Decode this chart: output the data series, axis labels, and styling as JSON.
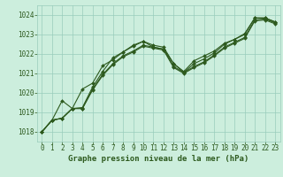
{
  "xlabel": "Graphe pression niveau de la mer (hPa)",
  "xlim": [
    -0.5,
    23.5
  ],
  "ylim": [
    1017.5,
    1024.5
  ],
  "yticks": [
    1018,
    1019,
    1020,
    1021,
    1022,
    1023,
    1024
  ],
  "xticks": [
    0,
    1,
    2,
    3,
    4,
    5,
    6,
    7,
    8,
    9,
    10,
    11,
    12,
    13,
    14,
    15,
    16,
    17,
    18,
    19,
    20,
    21,
    22,
    23
  ],
  "bg_color": "#cceedd",
  "grid_color": "#99ccbb",
  "line_color": "#2d5a1e",
  "lines": [
    [
      1018.0,
      1018.6,
      1019.6,
      1019.2,
      1020.2,
      1020.5,
      1021.4,
      1021.7,
      1022.1,
      1022.4,
      1022.65,
      1022.45,
      1022.35,
      1021.5,
      1021.1,
      1021.65,
      1021.9,
      1022.15,
      1022.55,
      1022.75,
      1023.05,
      1023.85,
      1023.85,
      1023.65
    ],
    [
      1018.0,
      1018.6,
      1018.7,
      1019.2,
      1019.25,
      1020.3,
      1021.1,
      1021.8,
      1022.1,
      1022.45,
      1022.65,
      1022.35,
      1022.25,
      1021.5,
      1021.05,
      1021.5,
      1021.75,
      1022.05,
      1022.5,
      1022.75,
      1023.0,
      1023.85,
      1023.85,
      1023.65
    ],
    [
      1018.0,
      1018.6,
      1018.7,
      1019.2,
      1019.2,
      1020.2,
      1020.95,
      1021.5,
      1021.9,
      1022.15,
      1022.45,
      1022.35,
      1022.25,
      1021.35,
      1021.05,
      1021.35,
      1021.6,
      1021.95,
      1022.35,
      1022.6,
      1022.85,
      1023.75,
      1023.8,
      1023.6
    ],
    [
      1018.0,
      1018.6,
      1018.7,
      1019.2,
      1019.2,
      1020.15,
      1020.9,
      1021.45,
      1021.85,
      1022.1,
      1022.4,
      1022.3,
      1022.2,
      1021.3,
      1021.0,
      1021.3,
      1021.55,
      1021.9,
      1022.3,
      1022.55,
      1022.8,
      1023.7,
      1023.75,
      1023.55
    ]
  ],
  "marker": "D",
  "markersize": 2.0,
  "linewidth": 0.8,
  "font_color": "#2d5a1e",
  "label_fontsize": 6.5,
  "tick_fontsize": 5.5
}
